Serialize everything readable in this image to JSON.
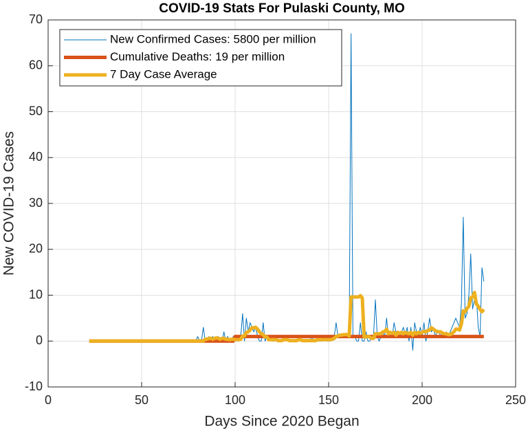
{
  "chart_data": {
    "type": "line",
    "title": "COVID-19 Stats For Pulaski County, MO",
    "xlabel": "Days Since 2020 Began",
    "ylabel": "New COVID-19 Cases",
    "xlim": [
      0,
      250
    ],
    "xticks": [
      0,
      50,
      100,
      150,
      200,
      250
    ],
    "ylim": [
      -10,
      70
    ],
    "yticks": [
      -10,
      0,
      10,
      20,
      30,
      40,
      50,
      60,
      70
    ],
    "grid": true,
    "legend": "upper-left",
    "x": [
      22,
      23,
      24,
      25,
      26,
      27,
      28,
      29,
      30,
      31,
      32,
      33,
      34,
      35,
      36,
      37,
      38,
      39,
      40,
      41,
      42,
      43,
      44,
      45,
      46,
      47,
      48,
      49,
      50,
      51,
      52,
      53,
      54,
      55,
      56,
      57,
      58,
      59,
      60,
      61,
      62,
      63,
      64,
      65,
      66,
      67,
      68,
      69,
      70,
      71,
      72,
      73,
      74,
      75,
      76,
      77,
      78,
      79,
      80,
      81,
      82,
      83,
      84,
      85,
      86,
      87,
      88,
      89,
      90,
      91,
      92,
      93,
      94,
      95,
      96,
      97,
      98,
      99,
      100,
      101,
      102,
      103,
      104,
      105,
      106,
      107,
      108,
      109,
      110,
      111,
      112,
      113,
      114,
      115,
      116,
      117,
      118,
      119,
      120,
      121,
      122,
      123,
      124,
      125,
      126,
      127,
      128,
      129,
      130,
      131,
      132,
      133,
      134,
      135,
      136,
      137,
      138,
      139,
      140,
      141,
      142,
      143,
      144,
      145,
      146,
      147,
      148,
      149,
      150,
      151,
      152,
      153,
      154,
      155,
      156,
      157,
      158,
      159,
      160,
      161,
      162,
      163,
      164,
      165,
      166,
      167,
      168,
      169,
      170,
      171,
      172,
      173,
      174,
      175,
      176,
      177,
      178,
      179,
      180,
      181,
      182,
      183,
      184,
      185,
      186,
      187,
      188,
      189,
      190,
      191,
      192,
      193,
      194,
      195,
      196,
      197,
      198,
      199,
      200,
      201,
      202,
      203,
      204,
      205,
      206,
      207,
      208,
      209,
      210,
      211,
      212,
      213,
      214,
      215,
      216,
      217,
      218,
      219,
      220,
      221,
      222,
      223,
      224,
      225,
      226,
      227,
      228,
      229,
      230,
      231,
      232,
      233
    ],
    "series": [
      {
        "name": "New Confirmed Cases: 5800 per million",
        "color": "#0072bd",
        "width": 1,
        "values": [
          0,
          0,
          0,
          0,
          0,
          0,
          0,
          0,
          0,
          0,
          0,
          0,
          0,
          0,
          0,
          0,
          0,
          0,
          0,
          0,
          0,
          0,
          0,
          0,
          0,
          0,
          0,
          0,
          0,
          0,
          0,
          0,
          0,
          0,
          0,
          0,
          0,
          0,
          0,
          0,
          0,
          0,
          0,
          0,
          0,
          0,
          0,
          0,
          0,
          0,
          0,
          0,
          0,
          0,
          0,
          0,
          0,
          0,
          1,
          0,
          0,
          3,
          0,
          0,
          1,
          0,
          1,
          0,
          0,
          1,
          0,
          0,
          2,
          0,
          1,
          0,
          0,
          1,
          0,
          1,
          0,
          1,
          6,
          0,
          5,
          2,
          4,
          3,
          2,
          3,
          1,
          0,
          0,
          4,
          0,
          1,
          0,
          1,
          0,
          0,
          1,
          0,
          0,
          0,
          0,
          1,
          0,
          0,
          0,
          0,
          0,
          0,
          1,
          0,
          0,
          0,
          0,
          0,
          0,
          1,
          0,
          0,
          0,
          0,
          0,
          0,
          1,
          0,
          0,
          0,
          1,
          1,
          4,
          1,
          1,
          1,
          1,
          1,
          1,
          1,
          67,
          1,
          1,
          0,
          0,
          4,
          0,
          0,
          2,
          0,
          0,
          1,
          1,
          9,
          1,
          0,
          1,
          2,
          1,
          5,
          1,
          2,
          1,
          4,
          2,
          1,
          1,
          2,
          3,
          1,
          3,
          0,
          3,
          -2,
          4,
          2,
          1,
          3,
          1,
          4,
          0,
          2,
          5,
          2,
          3,
          1,
          2,
          2,
          1,
          2,
          1,
          2,
          1,
          2,
          3,
          4,
          5,
          4,
          3,
          8,
          27,
          5,
          6,
          10,
          19,
          7,
          9,
          10,
          3,
          1,
          16,
          13
        ]
      },
      {
        "name": "Cumulative Deaths: 19 per million",
        "color": "#d95319",
        "width": 5,
        "values": [
          0,
          0,
          0,
          0,
          0,
          0,
          0,
          0,
          0,
          0,
          0,
          0,
          0,
          0,
          0,
          0,
          0,
          0,
          0,
          0,
          0,
          0,
          0,
          0,
          0,
          0,
          0,
          0,
          0,
          0,
          0,
          0,
          0,
          0,
          0,
          0,
          0,
          0,
          0,
          0,
          0,
          0,
          0,
          0,
          0,
          0,
          0,
          0,
          0,
          0,
          0,
          0,
          0,
          0,
          0,
          0,
          0,
          0,
          0,
          0,
          0,
          0,
          0,
          0,
          0,
          0,
          0,
          0,
          0,
          0,
          0,
          0,
          0,
          0,
          0,
          0,
          0,
          0,
          1,
          1,
          1,
          1,
          1,
          1,
          1,
          1,
          1,
          1,
          1,
          1,
          1,
          1,
          1,
          1,
          1,
          1,
          1,
          1,
          1,
          1,
          1,
          1,
          1,
          1,
          1,
          1,
          1,
          1,
          1,
          1,
          1,
          1,
          1,
          1,
          1,
          1,
          1,
          1,
          1,
          1,
          1,
          1,
          1,
          1,
          1,
          1,
          1,
          1,
          1,
          1,
          1,
          1,
          1,
          1,
          1,
          1,
          1,
          1,
          1,
          1,
          1,
          1,
          1,
          1,
          1,
          1,
          1,
          1,
          1,
          1,
          1,
          1,
          1,
          1,
          1,
          1,
          1,
          1,
          1,
          1,
          1,
          1,
          1,
          1,
          1,
          1,
          1,
          1,
          1,
          1,
          1,
          1,
          1,
          1,
          1,
          1,
          1,
          1,
          1,
          1,
          1,
          1,
          1,
          1,
          1,
          1,
          1,
          1,
          1,
          1,
          1,
          1,
          1,
          1,
          1,
          1,
          1,
          1,
          1,
          1,
          1,
          1,
          1,
          1,
          1,
          1,
          1,
          1,
          1,
          1,
          1,
          1
        ]
      },
      {
        "name": "7 Day Case Average",
        "color": "#edb120",
        "width": 5,
        "values": [
          0,
          0,
          0,
          0,
          0,
          0,
          0,
          0,
          0,
          0,
          0,
          0,
          0,
          0,
          0,
          0,
          0,
          0,
          0,
          0,
          0,
          0,
          0,
          0,
          0,
          0,
          0,
          0,
          0,
          0,
          0,
          0,
          0,
          0,
          0,
          0,
          0,
          0,
          0,
          0,
          0,
          0,
          0,
          0,
          0,
          0,
          0,
          0,
          0,
          0,
          0,
          0,
          0,
          0,
          0,
          0,
          0,
          0,
          0,
          0,
          0,
          0,
          0.4,
          0.4,
          0.6,
          0.6,
          0.4,
          0.6,
          0.7,
          0.6,
          0.4,
          0.6,
          0.6,
          0.4,
          0.4,
          0.3,
          0.4,
          0.4,
          0.3,
          0.3,
          0.3,
          0.4,
          1.1,
          1.1,
          1.9,
          2,
          2.4,
          2.9,
          2.9,
          3,
          2.6,
          2,
          1.6,
          1.4,
          0.9,
          0.9,
          0.3,
          0.3,
          0.3,
          0.3,
          0.3,
          0.1,
          0.1,
          0.1,
          0.3,
          0.3,
          0.3,
          0.1,
          0.1,
          0.1,
          0.1,
          0.1,
          0.3,
          0.3,
          0.1,
          0.1,
          0.1,
          0.1,
          0.1,
          0.1,
          0.1,
          0.1,
          0.3,
          0.3,
          0.3,
          0.3,
          0.3,
          0.3,
          0.3,
          0.3,
          0.4,
          0.6,
          1,
          1.1,
          1.3,
          1.3,
          1.4,
          1.4,
          1.4,
          1.1,
          9.6,
          9.6,
          9.6,
          9.6,
          9.6,
          9.9,
          9.4,
          0.9,
          0.9,
          1,
          0.9,
          0.6,
          0.6,
          1.6,
          1.6,
          1.6,
          1.6,
          2,
          2.1,
          2.6,
          1.6,
          1.9,
          1.7,
          1.9,
          1.3,
          1.9,
          1.7,
          1.9,
          1.6,
          1.9,
          1.7,
          1.6,
          1.9,
          1.3,
          1.9,
          1.6,
          1.9,
          1.7,
          1.9,
          2.1,
          2,
          2.3,
          2.4,
          2.9,
          2.6,
          2.3,
          2.1,
          2,
          2,
          1.7,
          1.6,
          1.6,
          1.4,
          1.4,
          1.7,
          2,
          2.6,
          2.6,
          2.4,
          3.7,
          6.6,
          6.4,
          7.1,
          7.6,
          9.4,
          9.6,
          10.6,
          8.1,
          7.6,
          6.9,
          6.4,
          6.9
        ]
      }
    ]
  }
}
